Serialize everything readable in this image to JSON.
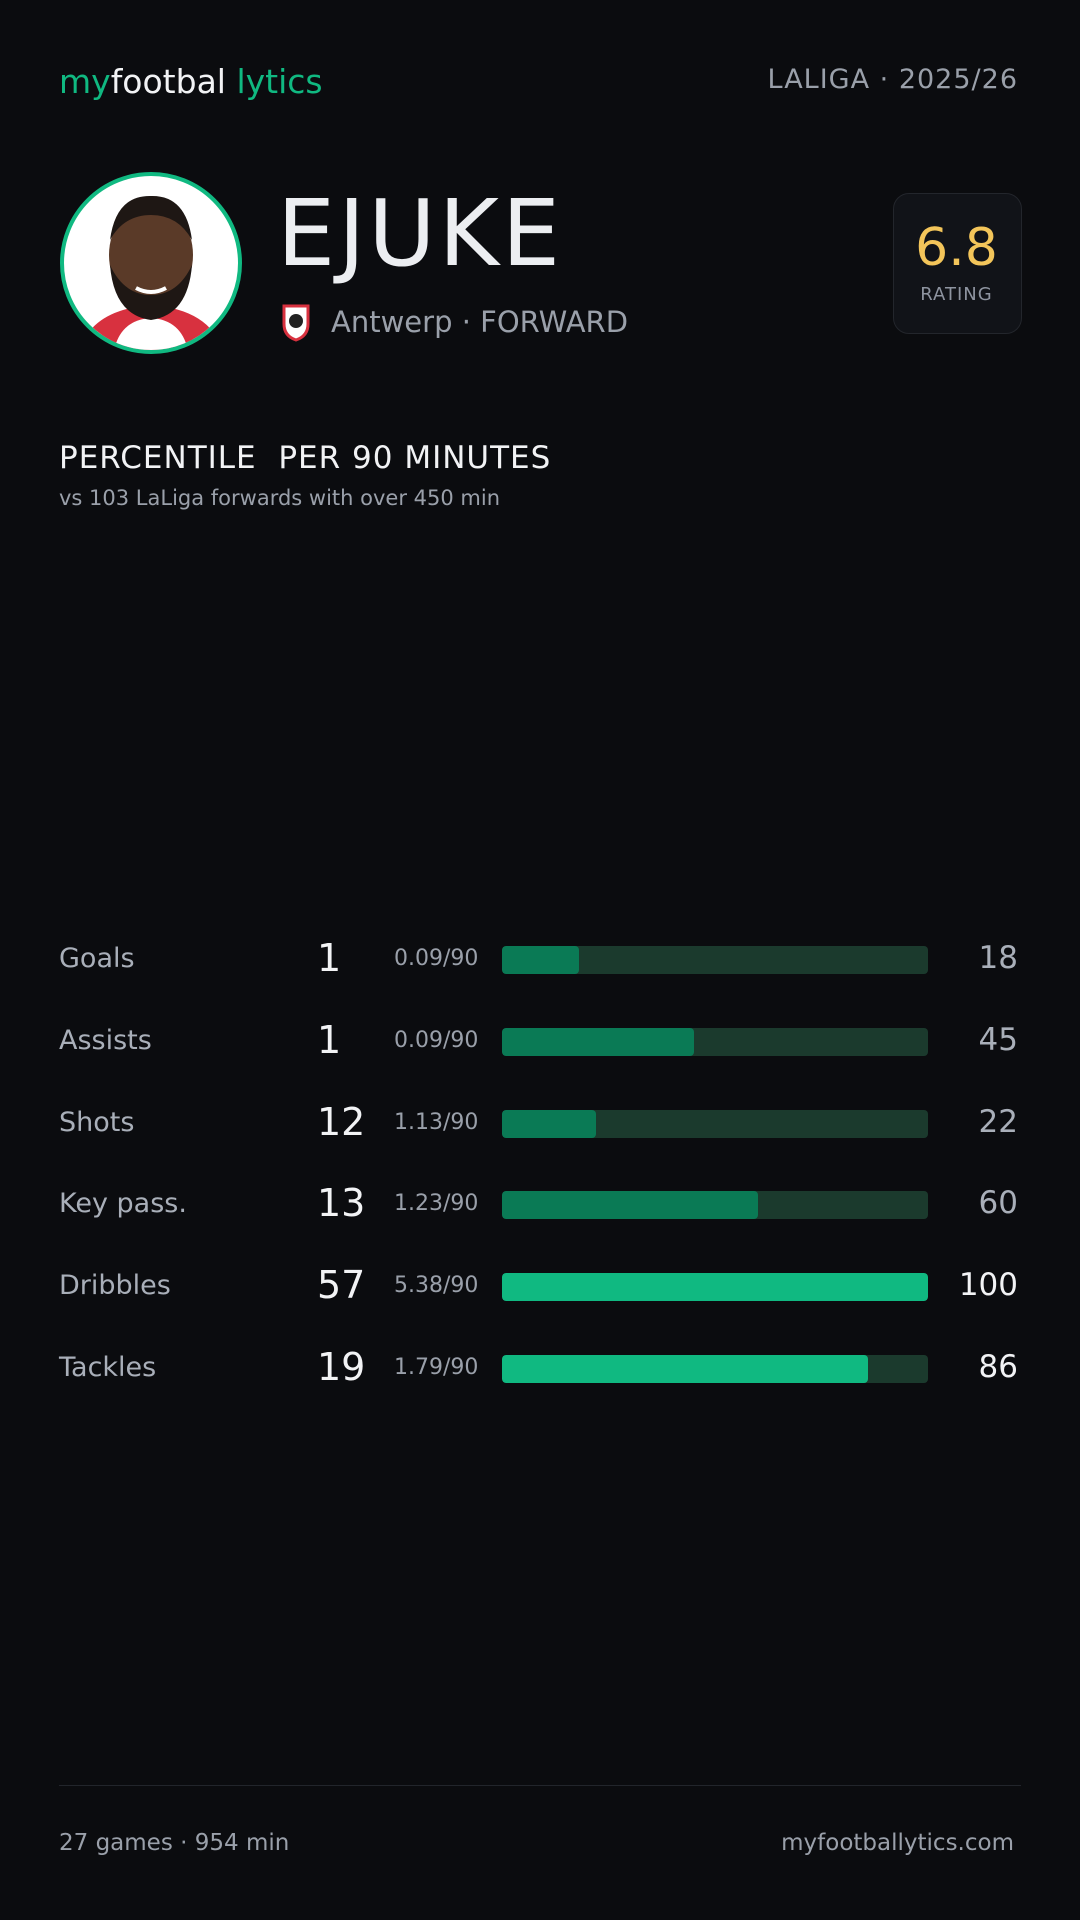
{
  "header": {
    "logo": {
      "part1": "my",
      "part2": "footbal",
      "part3": "lytics"
    },
    "league": "LALIGA · 2025/26"
  },
  "player": {
    "name": "EJUKE",
    "meta": "Antwerp · FORWARD"
  },
  "rating": {
    "value": "6.8",
    "label": "RATING"
  },
  "section": {
    "title": "PERCENTILE  PER 90 MINUTES",
    "subtitle": "vs 103 LaLiga forwards with over 450 min"
  },
  "stats": [
    {
      "label": "Goals",
      "total": 1,
      "per90": "0.09/90",
      "percentile": 18
    },
    {
      "label": "Assists",
      "total": 1,
      "per90": "0.09/90",
      "percentile": 45
    },
    {
      "label": "Shots",
      "total": 12,
      "per90": "1.13/90",
      "percentile": 22
    },
    {
      "label": "Key pass.",
      "total": 13,
      "per90": "1.23/90",
      "percentile": 60
    },
    {
      "label": "Dribbles",
      "total": 57,
      "per90": "5.38/90",
      "percentile": 100
    },
    {
      "label": "Tackles",
      "total": 19,
      "per90": "1.79/90",
      "percentile": 86
    }
  ],
  "footer": {
    "left": "27 games · 954 min",
    "right": "myfootballytics.com"
  }
}
